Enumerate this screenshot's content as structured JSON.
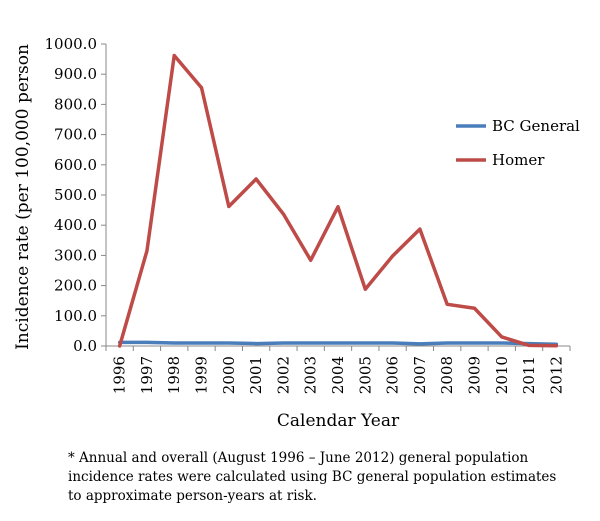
{
  "chart_data": {
    "type": "line",
    "title": "",
    "xlabel": "Calendar Year",
    "ylabel": "Incidence rate (per 100,000 person",
    "ylim": [
      0,
      1000
    ],
    "ytick_step": 100,
    "ytick_labels": [
      "0.0",
      "100.0",
      "200.0",
      "300.0",
      "400.0",
      "500.0",
      "600.0",
      "700.0",
      "800.0",
      "900.0",
      "1000.0"
    ],
    "categories": [
      "1996",
      "1997",
      "1998",
      "1999",
      "2000",
      "2001",
      "2002",
      "2003",
      "2004",
      "2005",
      "2006",
      "2007",
      "2008",
      "2009",
      "2010",
      "2011",
      "2012"
    ],
    "series": [
      {
        "name": "BC General",
        "color": "#4a7ebb",
        "values": [
          12,
          12,
          10,
          10,
          10,
          8,
          10,
          10,
          10,
          10,
          10,
          7,
          10,
          10,
          10,
          8,
          6
        ]
      },
      {
        "name": "Homer",
        "color": "#be4b48",
        "values": [
          0,
          315,
          962,
          855,
          462,
          553,
          437,
          284,
          461,
          188,
          298,
          387,
          138,
          125,
          30,
          2,
          1
        ]
      }
    ],
    "legend": "right"
  },
  "footnote": "* Annual and overall (August 1996 – June 2012) general population incidence rates were calculated using BC general population estimates to approximate person-years at risk."
}
